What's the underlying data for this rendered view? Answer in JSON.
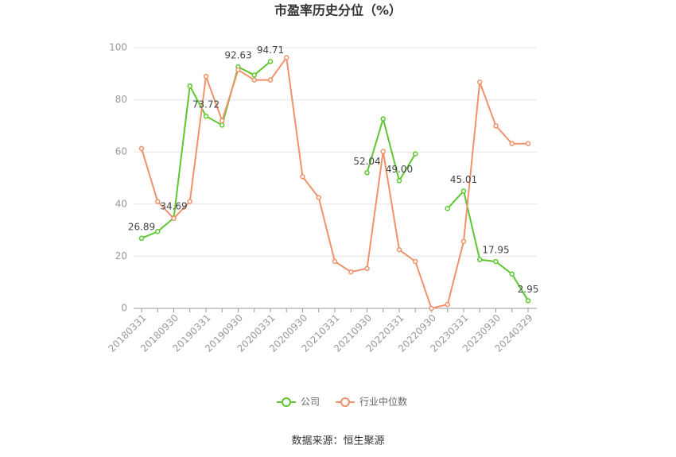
{
  "chart_data": {
    "type": "line",
    "title": "市盈率历史分位（%）",
    "source": "数据来源：恒生聚源",
    "categories": [
      "20180331",
      null,
      "20180930",
      null,
      "20190331",
      null,
      "20190930",
      null,
      "20200331",
      null,
      "20200930",
      null,
      "20210331",
      null,
      "20210930",
      null,
      "20220331",
      null,
      "20220930",
      null,
      "20230331",
      null,
      "20230930",
      null,
      "20240329"
    ],
    "series": [
      {
        "name": "公司",
        "color": "#5cc72e",
        "values": [
          26.89,
          29.5,
          34.69,
          85.3,
          73.72,
          70.3,
          92.63,
          89.5,
          94.71,
          null,
          null,
          null,
          null,
          null,
          52.04,
          72.7,
          49.0,
          59.3,
          null,
          38.3,
          45.01,
          18.7,
          17.95,
          13.2,
          2.95
        ],
        "value_labels": [
          "26.89",
          null,
          "34.69",
          null,
          "73.72",
          null,
          "92.63",
          null,
          "94.71",
          null,
          null,
          null,
          null,
          null,
          "52.04",
          null,
          "49.00",
          null,
          null,
          null,
          "45.01",
          null,
          "17.95",
          null,
          "2.95"
        ]
      },
      {
        "name": "行业中位数",
        "color": "#f0916a",
        "values": [
          61.3,
          41,
          34.5,
          41,
          89,
          72,
          91.5,
          87.6,
          87.6,
          96.2,
          50.5,
          42.5,
          18,
          14,
          15.3,
          60.2,
          22.5,
          18,
          0,
          1.5,
          25.7,
          86.8,
          70,
          63.2,
          63.2
        ]
      }
    ],
    "ylim": [
      0,
      100
    ],
    "yticks": [
      0,
      20,
      40,
      60,
      80,
      100
    ],
    "grid": true,
    "legend": "bottom"
  }
}
